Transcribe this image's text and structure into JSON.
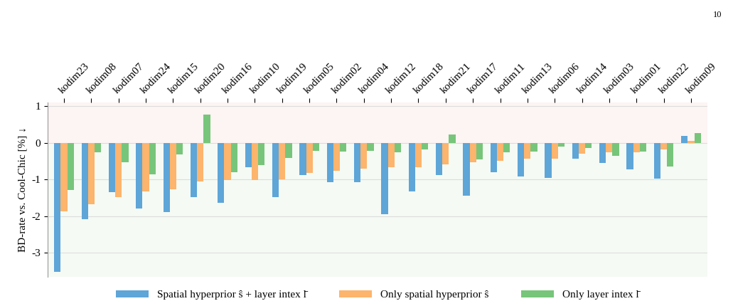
{
  "page_number": "10",
  "chart_data": {
    "type": "bar",
    "y_label": "BD-rate vs. Cool-Chic [%] ↓",
    "categories": [
      "kodim23",
      "kodim08",
      "kodim07",
      "kodim24",
      "kodim15",
      "kodim20",
      "kodim16",
      "kodim10",
      "kodim19",
      "kodim05",
      "kodim02",
      "kodim04",
      "kodim12",
      "kodim18",
      "kodim21",
      "kodim17",
      "kodim11",
      "kodim13",
      "kodim06",
      "kodim14",
      "kodim03",
      "kodim01",
      "kodim22",
      "kodim09"
    ],
    "series": [
      {
        "name": "Spatial hyperprior ŝ + layer intex l̄",
        "color": "#5ea5d8",
        "values": [
          -3.53,
          -2.09,
          -1.35,
          -1.79,
          -1.89,
          -1.49,
          -1.64,
          -0.67,
          -1.49,
          -0.88,
          -1.07,
          -1.07,
          -1.94,
          -1.33,
          -0.88,
          -1.45,
          -0.8,
          -0.92,
          -0.95,
          -0.44,
          -0.55,
          -0.72,
          -0.97,
          0.19
        ]
      },
      {
        "name": "Only spatial hyperprior ŝ",
        "color": "#fdb46c",
        "values": [
          -1.87,
          -1.68,
          -1.48,
          -1.33,
          -1.26,
          -1.05,
          -1.01,
          -1.01,
          -0.99,
          -0.82,
          -0.76,
          -0.7,
          -0.67,
          -0.67,
          -0.59,
          -0.53,
          -0.5,
          -0.44,
          -0.44,
          -0.29,
          -0.25,
          -0.25,
          -0.19,
          0.06
        ]
      },
      {
        "name": "Only layer intex l̄",
        "color": "#77c57a",
        "values": [
          -1.28,
          -0.25,
          -0.53,
          -0.86,
          -0.32,
          0.78,
          -0.8,
          -0.61,
          -0.42,
          -0.21,
          -0.23,
          -0.21,
          -0.25,
          -0.19,
          0.23,
          -0.46,
          -0.25,
          -0.23,
          -0.1,
          -0.15,
          -0.36,
          -0.23,
          -0.65,
          0.27
        ]
      }
    ],
    "ylim": [
      -3.66,
      1.1
    ],
    "yticks": [
      -3,
      -2,
      -1,
      0,
      1
    ],
    "grid": true,
    "legend": "bottom"
  }
}
